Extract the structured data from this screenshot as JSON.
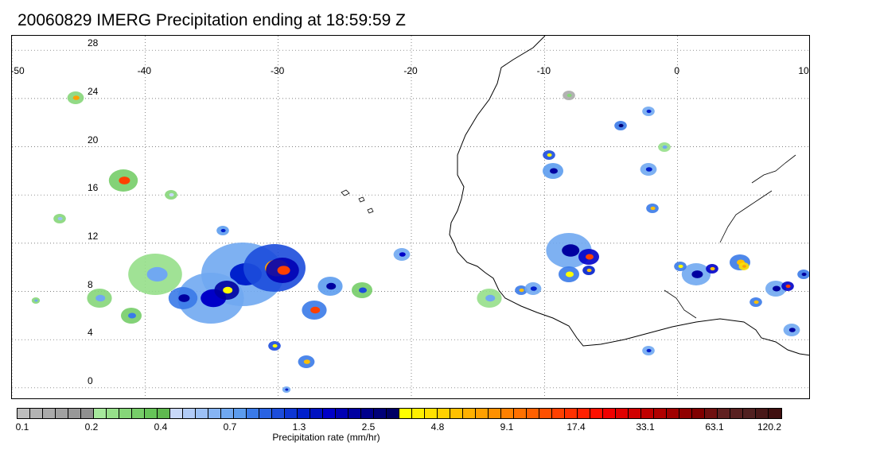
{
  "title": "20060829 IMERG Precipitation ending at 18:59:59 Z",
  "map": {
    "longitude_labels": [
      "-50",
      "-40",
      "-30",
      "-20",
      "-10",
      "0",
      "10"
    ],
    "latitude_labels": [
      "28",
      "24",
      "20",
      "16",
      "12",
      "8",
      "4",
      "0"
    ],
    "gridlines": "dotted",
    "extent": {
      "lon_min": -50,
      "lon_max": 10,
      "lat_min": -0.5,
      "lat_max": 30
    }
  },
  "colorbar": {
    "title": "Precipitation rate (mm/hr)",
    "tick_labels": [
      "0.1",
      "0.2",
      "0.4",
      "0.7",
      "1.3",
      "2.5",
      "4.8",
      "9.1",
      "17.4",
      "33.1",
      "63.1",
      "120.2"
    ],
    "colors": [
      "#bdbdbd",
      "#b3b3b3",
      "#aaaaaa",
      "#a1a1a1",
      "#989898",
      "#909090",
      "#a6e89c",
      "#96df8a",
      "#86d679",
      "#76cd68",
      "#66c458",
      "#5fb84f",
      "#c8d8f8",
      "#b1cbf7",
      "#9cc0f5",
      "#86b4f3",
      "#70a8f1",
      "#5c9cee",
      "#3a7ae8",
      "#2a63e2",
      "#1c4ddb",
      "#0d36d4",
      "#0020cc",
      "#0012c0",
      "#0000c8",
      "#0000b4",
      "#0000a0",
      "#00008c",
      "#000078",
      "#000064",
      "#ffff00",
      "#ffef00",
      "#ffe000",
      "#ffd000",
      "#ffc000",
      "#ffb000",
      "#ffa000",
      "#ff9000",
      "#ff8000",
      "#ff7000",
      "#ff6000",
      "#ff5000",
      "#ff4000",
      "#ff3000",
      "#ff2000",
      "#ff1000",
      "#f00000",
      "#e00000",
      "#d00000",
      "#c00000",
      "#b00000",
      "#a00000",
      "#900000",
      "#800000",
      "#701010",
      "#602020",
      "#582020",
      "#502020",
      "#481818",
      "#401010"
    ]
  }
}
